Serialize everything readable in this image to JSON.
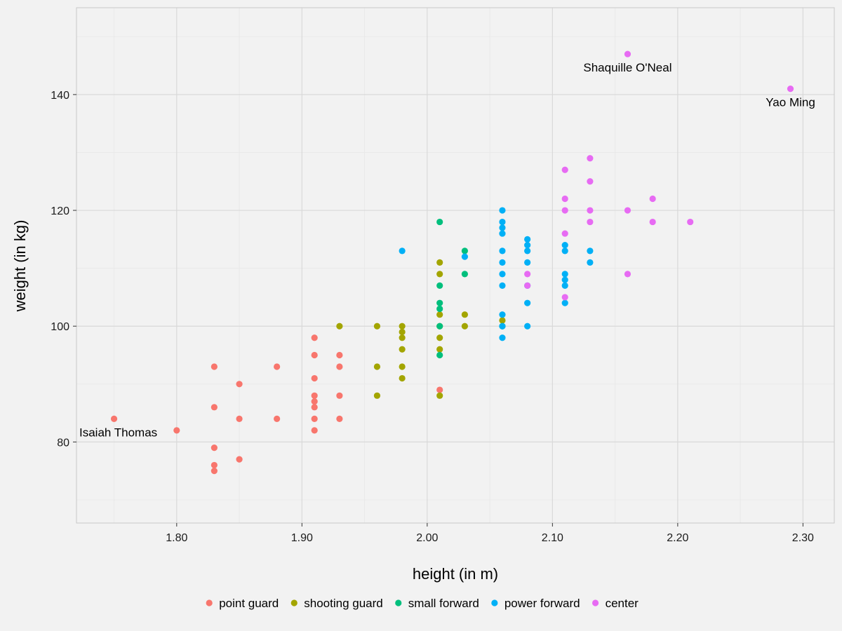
{
  "chart_data": {
    "type": "scatter",
    "title": "",
    "xlabel": "height (in m)",
    "ylabel": "weight (in kg)",
    "xlim": [
      1.72,
      2.325
    ],
    "ylim": [
      66,
      155
    ],
    "x_ticks": [
      1.8,
      1.9,
      2.0,
      2.1,
      2.2,
      2.3
    ],
    "x_tick_labels": [
      "1.80",
      "1.90",
      "2.00",
      "2.10",
      "2.20",
      "2.30"
    ],
    "y_ticks": [
      80,
      100,
      120,
      140
    ],
    "y_tick_labels": [
      "80",
      "100",
      "120",
      "140"
    ],
    "grid": true,
    "legend_position": "bottom",
    "colors": {
      "background": "#f2f2f2",
      "grid_major": "#d9d9d9",
      "grid_minor": "#e9e9e9",
      "panel_border": "#c8c8c8"
    },
    "series": [
      {
        "name": "point guard",
        "color": "#F8766D",
        "points": [
          [
            1.75,
            84
          ],
          [
            1.8,
            82
          ],
          [
            1.83,
            93
          ],
          [
            1.83,
            86
          ],
          [
            1.83,
            79
          ],
          [
            1.83,
            76
          ],
          [
            1.83,
            75
          ],
          [
            1.85,
            90
          ],
          [
            1.85,
            84
          ],
          [
            1.85,
            77
          ],
          [
            1.88,
            93
          ],
          [
            1.88,
            84
          ],
          [
            1.91,
            98
          ],
          [
            1.91,
            95
          ],
          [
            1.91,
            91
          ],
          [
            1.91,
            88
          ],
          [
            1.91,
            87
          ],
          [
            1.91,
            86
          ],
          [
            1.91,
            84
          ],
          [
            1.91,
            82
          ],
          [
            1.93,
            95
          ],
          [
            1.93,
            93
          ],
          [
            1.93,
            88
          ],
          [
            1.93,
            84
          ],
          [
            2.01,
            89
          ]
        ]
      },
      {
        "name": "shooting guard",
        "color": "#A3A500",
        "points": [
          [
            1.93,
            100
          ],
          [
            1.96,
            100
          ],
          [
            1.96,
            93
          ],
          [
            1.96,
            88
          ],
          [
            1.98,
            100
          ],
          [
            1.98,
            99
          ],
          [
            1.98,
            98
          ],
          [
            1.98,
            96
          ],
          [
            1.98,
            93
          ],
          [
            1.98,
            91
          ],
          [
            2.01,
            111
          ],
          [
            2.01,
            109
          ],
          [
            2.01,
            102
          ],
          [
            2.01,
            100
          ],
          [
            2.01,
            98
          ],
          [
            2.01,
            96
          ],
          [
            2.01,
            88
          ],
          [
            2.03,
            102
          ],
          [
            2.03,
            100
          ],
          [
            2.06,
            101
          ]
        ]
      },
      {
        "name": "small forward",
        "color": "#00BF7D",
        "points": [
          [
            2.01,
            118
          ],
          [
            2.01,
            107
          ],
          [
            2.01,
            104
          ],
          [
            2.01,
            103
          ],
          [
            2.01,
            100
          ],
          [
            2.01,
            95
          ],
          [
            2.03,
            113
          ],
          [
            2.03,
            109
          ],
          [
            2.06,
            100
          ]
        ]
      },
      {
        "name": "power forward",
        "color": "#00B0F6",
        "points": [
          [
            1.98,
            113
          ],
          [
            2.03,
            112
          ],
          [
            2.06,
            120
          ],
          [
            2.06,
            118
          ],
          [
            2.06,
            117
          ],
          [
            2.06,
            116
          ],
          [
            2.06,
            113
          ],
          [
            2.06,
            111
          ],
          [
            2.06,
            109
          ],
          [
            2.06,
            107
          ],
          [
            2.06,
            102
          ],
          [
            2.06,
            100
          ],
          [
            2.06,
            98
          ],
          [
            2.08,
            115
          ],
          [
            2.08,
            114
          ],
          [
            2.08,
            113
          ],
          [
            2.08,
            111
          ],
          [
            2.08,
            107
          ],
          [
            2.08,
            104
          ],
          [
            2.08,
            100
          ],
          [
            2.11,
            114
          ],
          [
            2.11,
            113
          ],
          [
            2.11,
            109
          ],
          [
            2.11,
            108
          ],
          [
            2.11,
            107
          ],
          [
            2.11,
            104
          ],
          [
            2.13,
            113
          ],
          [
            2.13,
            111
          ]
        ]
      },
      {
        "name": "center",
        "color": "#E76BF3",
        "points": [
          [
            2.08,
            109
          ],
          [
            2.08,
            107
          ],
          [
            2.11,
            127
          ],
          [
            2.11,
            122
          ],
          [
            2.11,
            120
          ],
          [
            2.11,
            116
          ],
          [
            2.11,
            105
          ],
          [
            2.13,
            129
          ],
          [
            2.13,
            125
          ],
          [
            2.13,
            120
          ],
          [
            2.13,
            118
          ],
          [
            2.16,
            147
          ],
          [
            2.16,
            120
          ],
          [
            2.16,
            109
          ],
          [
            2.18,
            122
          ],
          [
            2.18,
            118
          ],
          [
            2.21,
            118
          ],
          [
            2.29,
            141
          ]
        ]
      }
    ],
    "annotations": [
      {
        "text": "Shaquille O'Neal",
        "x": 2.16,
        "y": 147
      },
      {
        "text": "Yao Ming",
        "x": 2.29,
        "y": 141
      },
      {
        "text": "Isaiah Thomas",
        "x": 1.75,
        "y": 84
      }
    ]
  }
}
